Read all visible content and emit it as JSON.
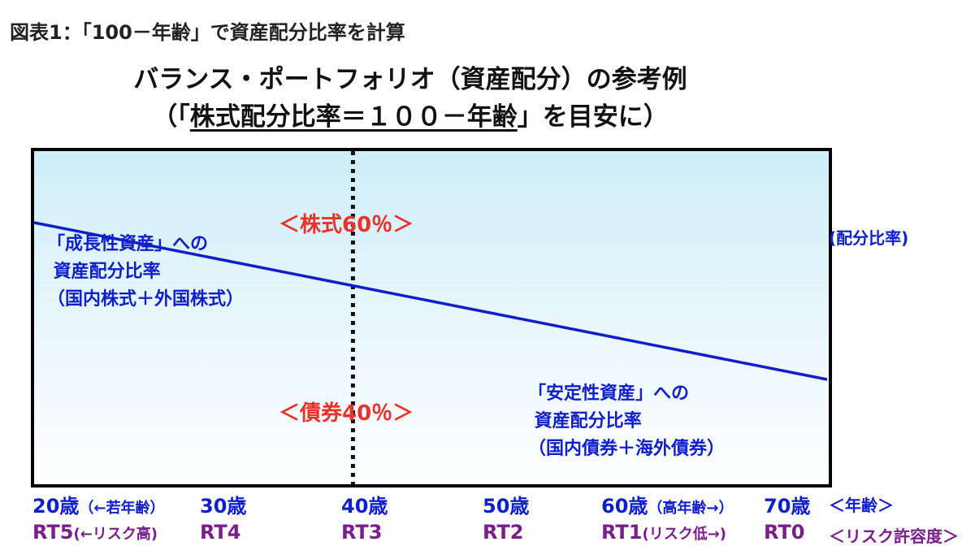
{
  "caption": "図表1：「100－年齢」で資産配分比率を計算",
  "title": {
    "line1": "バランス・ポートフォリオ（資産配分）の参考例",
    "line2_pre": "（「",
    "line2_underlined": "株式配分比率＝１００－年齢",
    "line2_post": "」を目安に）"
  },
  "labels": {
    "stock_pct": "＜株式60％＞",
    "bond_pct": "＜債券40％＞",
    "growth_asset": "「成長性資産」への\n 資産配分比率\n（国内株式＋外国株式）",
    "stable_asset": "「安定性資産」への\n 資産配分比率\n（国内債券＋海外債券）",
    "ratio": "(配分比率)"
  },
  "axis": {
    "ages": [
      {
        "main": "20歳",
        "note": "（←若年齢）"
      },
      {
        "main": "30歳",
        "note": ""
      },
      {
        "main": "40歳",
        "note": ""
      },
      {
        "main": "50歳",
        "note": ""
      },
      {
        "main": "60歳",
        "note": "（高年齢→）"
      },
      {
        "main": "70歳",
        "note": ""
      }
    ],
    "age_label": "＜年齢＞",
    "rts": [
      {
        "main": "RT5",
        "note": "(←リスク高)"
      },
      {
        "main": "RT4",
        "note": ""
      },
      {
        "main": "RT3",
        "note": ""
      },
      {
        "main": "RT2",
        "note": ""
      },
      {
        "main": "RT1",
        "note": "(リスク低→)"
      },
      {
        "main": "RT0",
        "note": ""
      }
    ],
    "rt_label": "＜リスク許容度＞"
  },
  "chart_data": {
    "type": "line",
    "x": [
      20,
      30,
      40,
      50,
      60,
      70
    ],
    "series": [
      {
        "values": [
          80,
          70,
          60,
          50,
          40,
          30
        ]
      }
    ],
    "highlight_x": 40
  },
  "colors": {
    "line": "#1020c8",
    "red": "#e8332a",
    "blue": "#1020c8",
    "purple": "#7a1e8c"
  }
}
